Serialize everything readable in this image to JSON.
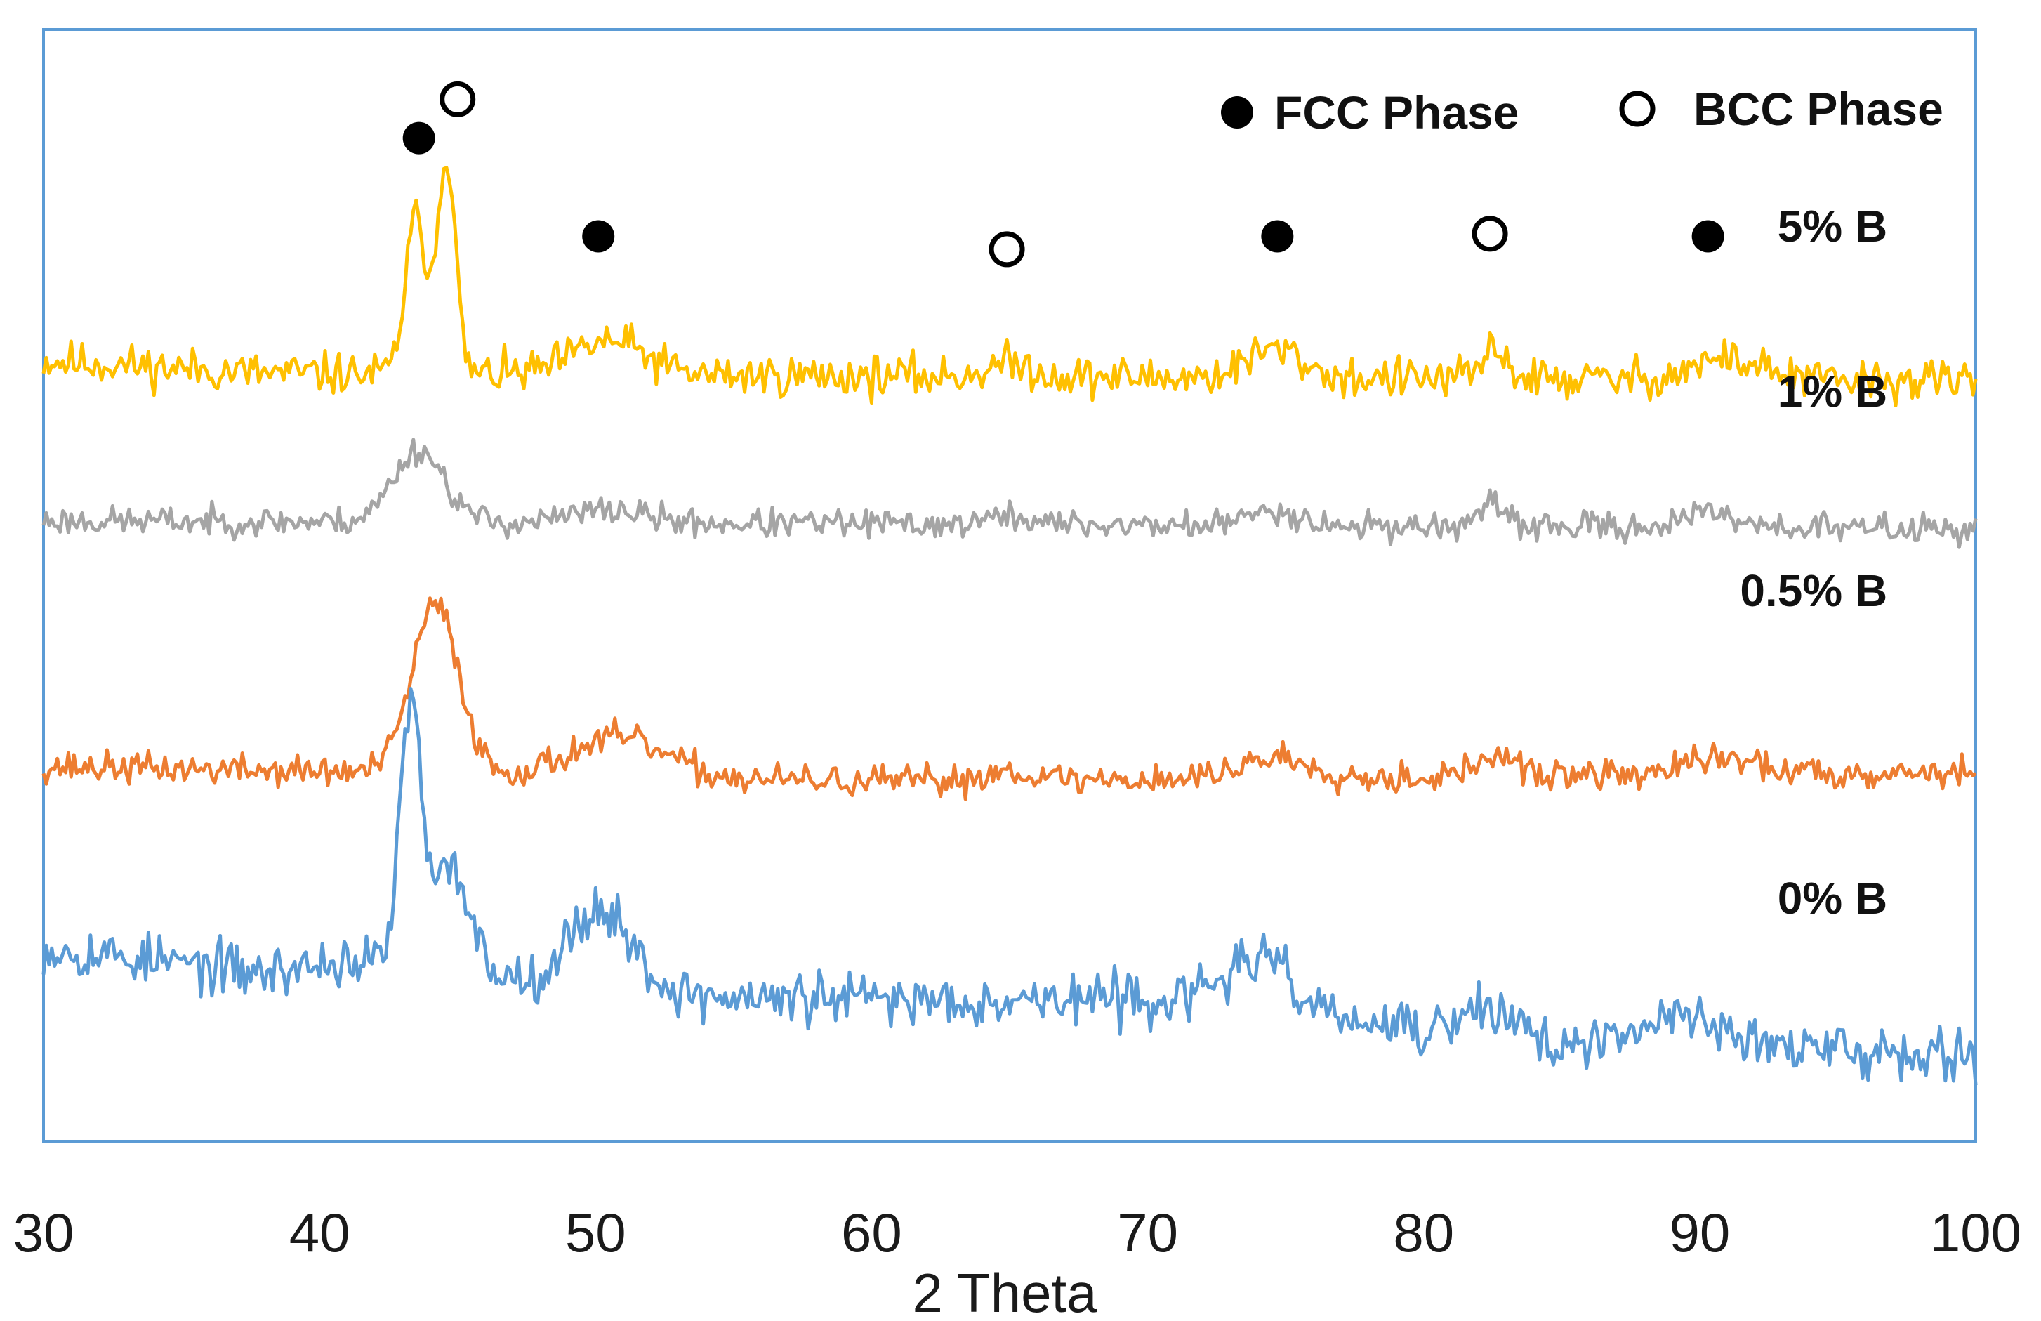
{
  "chart_data": {
    "type": "line",
    "title": "",
    "xlabel": "2 Theta",
    "ylabel": "",
    "xlim": [
      30,
      100
    ],
    "ylim": [
      0,
      4.3
    ],
    "x_ticks": [
      30,
      40,
      50,
      60,
      70,
      80,
      90,
      100
    ],
    "x_tick_labels": [
      "30",
      "40",
      "50",
      "60",
      "70",
      "80",
      "90",
      "100"
    ],
    "grid": false,
    "legend": {
      "position": "top-right",
      "entries": [
        {
          "label": "FCC Phase",
          "marker": "filled-circle"
        },
        {
          "label": "BCC Phase",
          "marker": "open-circle"
        }
      ]
    },
    "series": [
      {
        "name": "5% B",
        "label": "5% B",
        "color": "#FFC000",
        "baseline": 3.0,
        "noise": 0.08,
        "seed": 11,
        "peaks": [
          [
            43.5,
            0.6,
            0.55
          ],
          [
            44.6,
            0.85,
            0.45
          ],
          [
            50.5,
            0.13,
            1.8
          ],
          [
            65.0,
            0.05,
            1.2
          ],
          [
            74.6,
            0.11,
            1.4
          ],
          [
            82.6,
            0.12,
            0.6
          ],
          [
            91.0,
            0.08,
            1.8
          ]
        ],
        "slope": [
          [
            30,
            0.02
          ],
          [
            38,
            -0.03
          ],
          [
            100,
            -0.06
          ]
        ]
      },
      {
        "name": "1% B",
        "label": "1% B",
        "color": "#A5A5A5",
        "baseline": 2.4,
        "noise": 0.055,
        "seed": 23,
        "peaks": [
          [
            43.6,
            0.28,
            1.3
          ],
          [
            50.5,
            0.05,
            1.8
          ],
          [
            65.0,
            0.03,
            1.2
          ],
          [
            74.6,
            0.06,
            1.3
          ],
          [
            82.5,
            0.07,
            0.8
          ],
          [
            90.5,
            0.05,
            1.6
          ]
        ],
        "slope": [
          [
            30,
            0.0
          ],
          [
            100,
            -0.03
          ]
        ]
      },
      {
        "name": "0.5% B",
        "label": "0.5% B",
        "color": "#ED7D31",
        "baseline": 1.45,
        "noise": 0.06,
        "seed": 37,
        "peaks": [
          [
            44.2,
            0.65,
            1.2
          ],
          [
            50.8,
            0.15,
            2.4
          ],
          [
            65.0,
            0.04,
            1.2
          ],
          [
            74.6,
            0.08,
            1.8
          ],
          [
            82.6,
            0.08,
            0.9
          ],
          [
            90.8,
            0.06,
            1.8
          ]
        ],
        "slope": [
          [
            30,
            0.0
          ],
          [
            60,
            -0.06
          ],
          [
            100,
            -0.02
          ]
        ]
      },
      {
        "name": "0% B",
        "label": "0% B",
        "color": "#5B9BD5",
        "baseline": 0.5,
        "noise": 0.1,
        "seed": 53,
        "peaks": [
          [
            43.3,
            1.0,
            0.55
          ],
          [
            44.8,
            0.4,
            0.9
          ],
          [
            50.2,
            0.3,
            1.5
          ],
          [
            74.0,
            0.2,
            1.8
          ],
          [
            82.5,
            0.12,
            1.4
          ],
          [
            89.5,
            0.14,
            2.2
          ]
        ],
        "slope": [
          [
            30,
            0.25
          ],
          [
            38,
            0.15
          ],
          [
            41,
            0.2
          ],
          [
            55,
            0.05
          ],
          [
            70,
            0.05
          ],
          [
            86,
            -0.15
          ],
          [
            100,
            -0.15
          ]
        ]
      }
    ],
    "phase_markers": [
      {
        "phase": "FCC",
        "x": 43.6,
        "y": 3.88
      },
      {
        "phase": "BCC",
        "x": 45.0,
        "y": 4.03
      },
      {
        "phase": "FCC",
        "x": 50.1,
        "y": 3.5
      },
      {
        "phase": "BCC",
        "x": 64.9,
        "y": 3.45
      },
      {
        "phase": "FCC",
        "x": 74.7,
        "y": 3.5
      },
      {
        "phase": "BCC",
        "x": 82.4,
        "y": 3.51
      },
      {
        "phase": "FCC",
        "x": 90.3,
        "y": 3.5
      }
    ],
    "series_label_positions": [
      {
        "label": "5% B",
        "x": 96.8,
        "y": 3.48
      },
      {
        "label": "1% B",
        "x": 96.8,
        "y": 2.84
      },
      {
        "label": "0.5% B",
        "x": 96.8,
        "y": 2.07
      },
      {
        "label": "0% B",
        "x": 96.8,
        "y": 0.88
      }
    ]
  }
}
